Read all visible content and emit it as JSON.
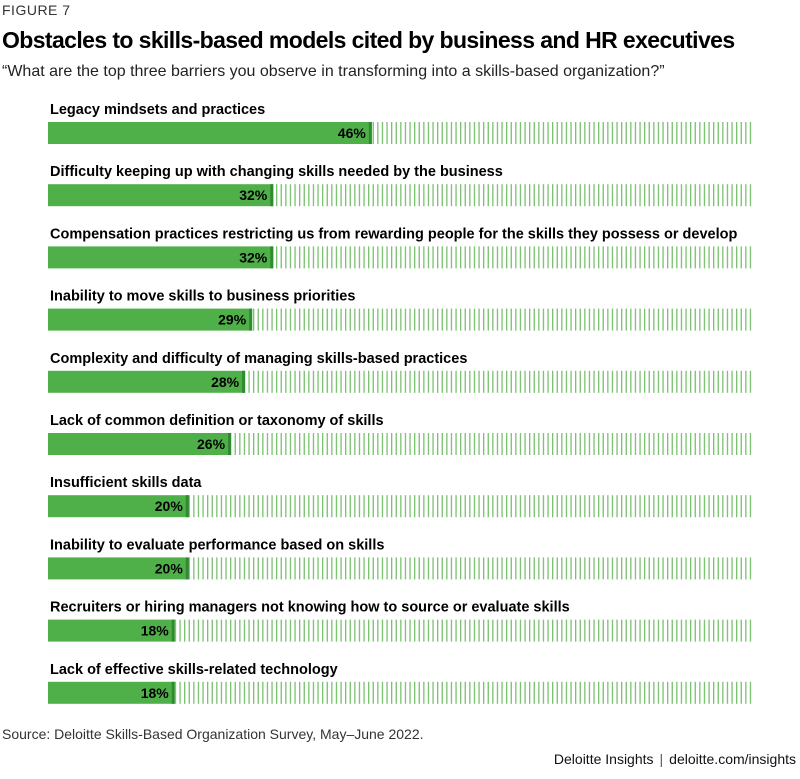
{
  "figure_label": "FIGURE 7",
  "footer": {
    "source": "Source: Deloitte Skills-Based Organization Survey, May–June 2022.",
    "brand": "Deloitte Insights",
    "separator": "|",
    "url": "deloitte.com/insights"
  },
  "colors": {
    "bar_fill": "#4fb04a",
    "bar_edge": "#2e8b2e",
    "track_stripe": "#7ac070"
  },
  "chart_data": {
    "type": "bar",
    "orientation": "horizontal",
    "title": "Obstacles to skills-based models cited by business and HR executives",
    "subtitle": "“What are the top three barriers you observe in transforming into a skills-based organization?”",
    "xlim": [
      0,
      100
    ],
    "grid": false,
    "legend": "none",
    "value_suffix": "%",
    "categories": [
      "Legacy mindsets and practices",
      "Difficulty keeping up with changing skills needed by the business",
      "Compensation practices restricting us from rewarding people for the skills they possess or develop",
      "Inability to move skills to business priorities",
      "Complexity and difficulty of managing skills-based practices",
      "Lack of common definition or taxonomy of skills",
      "Insufficient skills data",
      "Inability to evaluate performance based on skills",
      "Recruiters or hiring managers not knowing how to source or evaluate skills",
      "Lack of effective skills-related technology"
    ],
    "values": [
      46,
      32,
      32,
      29,
      28,
      26,
      20,
      20,
      18,
      18
    ],
    "value_labels": [
      "46%",
      "32%",
      "32%",
      "29%",
      "28%",
      "26%",
      "20%",
      "20%",
      "18%",
      "18%"
    ]
  }
}
